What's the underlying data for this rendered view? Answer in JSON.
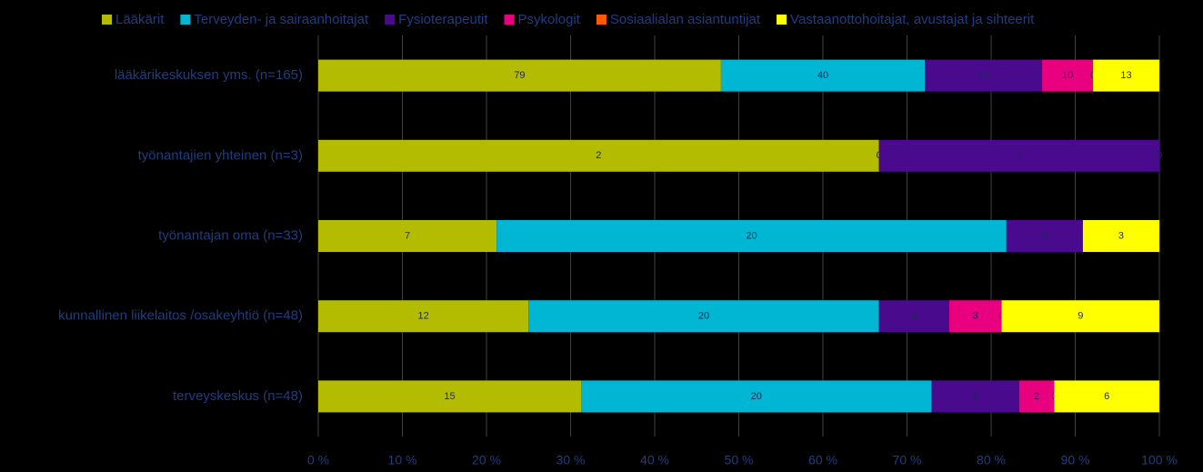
{
  "chart_data": {
    "type": "stacked-bar-100",
    "orientation": "horizontal",
    "categories": [
      "lääkärikeskuksen yms.  (n=165)",
      "työnantajien yhteinen (n=3)",
      "työnantajan oma (n=33)",
      "kunnallinen liikelaitos /osakeyhtiö (n=48)",
      "terveyskeskus (n=48)"
    ],
    "series": [
      {
        "name": "Lääkärit",
        "color": "#b3bc00",
        "values": [
          79,
          2,
          7,
          12,
          15
        ]
      },
      {
        "name": "Terveyden- ja sairaanhoitajat",
        "color": "#00b6d2",
        "values": [
          40,
          0,
          20,
          20,
          20
        ]
      },
      {
        "name": "Fysioterapeutit",
        "color": "#4a0a8e",
        "values": [
          23,
          1,
          3,
          4,
          5
        ]
      },
      {
        "name": "Psykologit",
        "color": "#e8007f",
        "values": [
          10,
          0,
          0,
          3,
          2
        ]
      },
      {
        "name": "Sosiaalialan asiantuntijat",
        "color": "#ff5a00",
        "values": [
          0,
          0,
          0,
          0,
          0
        ]
      },
      {
        "name": "Vastaanottohoitajat, avustajat ja sihteerit",
        "color": "#ffff00",
        "values": [
          13,
          0,
          3,
          9,
          6
        ]
      }
    ],
    "xlim": [
      0,
      100
    ],
    "xticks": [
      {
        "value": 0,
        "label": "0 %"
      },
      {
        "value": 10,
        "label": "10 %"
      },
      {
        "value": 20,
        "label": "20 %"
      },
      {
        "value": 30,
        "label": "30 %"
      },
      {
        "value": 40,
        "label": "40 %"
      },
      {
        "value": 50,
        "label": "50 %"
      },
      {
        "value": 60,
        "label": "60 %"
      },
      {
        "value": 70,
        "label": "70 %"
      },
      {
        "value": 80,
        "label": "80 %"
      },
      {
        "value": 90,
        "label": "90 %"
      },
      {
        "value": 100,
        "label": "100 %"
      }
    ],
    "grid": true,
    "legend": "top"
  }
}
